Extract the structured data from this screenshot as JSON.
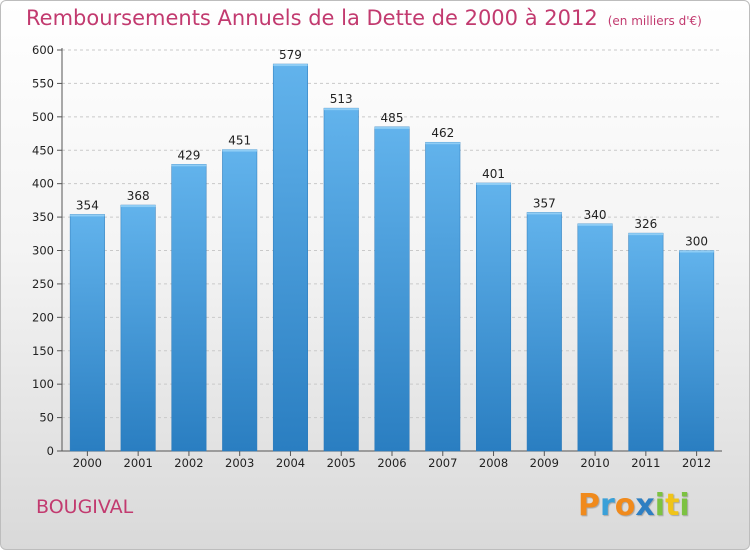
{
  "title": "Remboursements Annuels de la Dette de 2000 à 2012",
  "unit": "(en milliers d'€)",
  "commune": "BOUGIVAL",
  "logo": "Proxiti",
  "chart_data": {
    "type": "bar",
    "categories": [
      "2000",
      "2001",
      "2002",
      "2003",
      "2004",
      "2005",
      "2006",
      "2007",
      "2008",
      "2009",
      "2010",
      "2011",
      "2012"
    ],
    "values": [
      354,
      368,
      429,
      451,
      579,
      513,
      485,
      462,
      401,
      357,
      340,
      326,
      300
    ],
    "ylim": [
      0,
      600
    ],
    "yticks": [
      0,
      50,
      100,
      150,
      200,
      250,
      300,
      350,
      400,
      450,
      500,
      550,
      600
    ],
    "grid": true,
    "bar_color": "#3b96d8"
  }
}
